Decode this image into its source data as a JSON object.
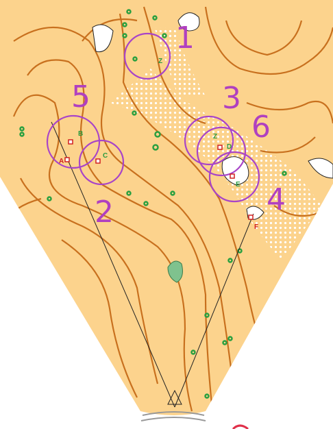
{
  "control_numbers": [
    "1",
    "2",
    "3",
    "4",
    "5",
    "6"
  ],
  "codes": [
    "Z",
    "B",
    "C",
    "A",
    "Z",
    "D",
    "E",
    "F"
  ]
}
